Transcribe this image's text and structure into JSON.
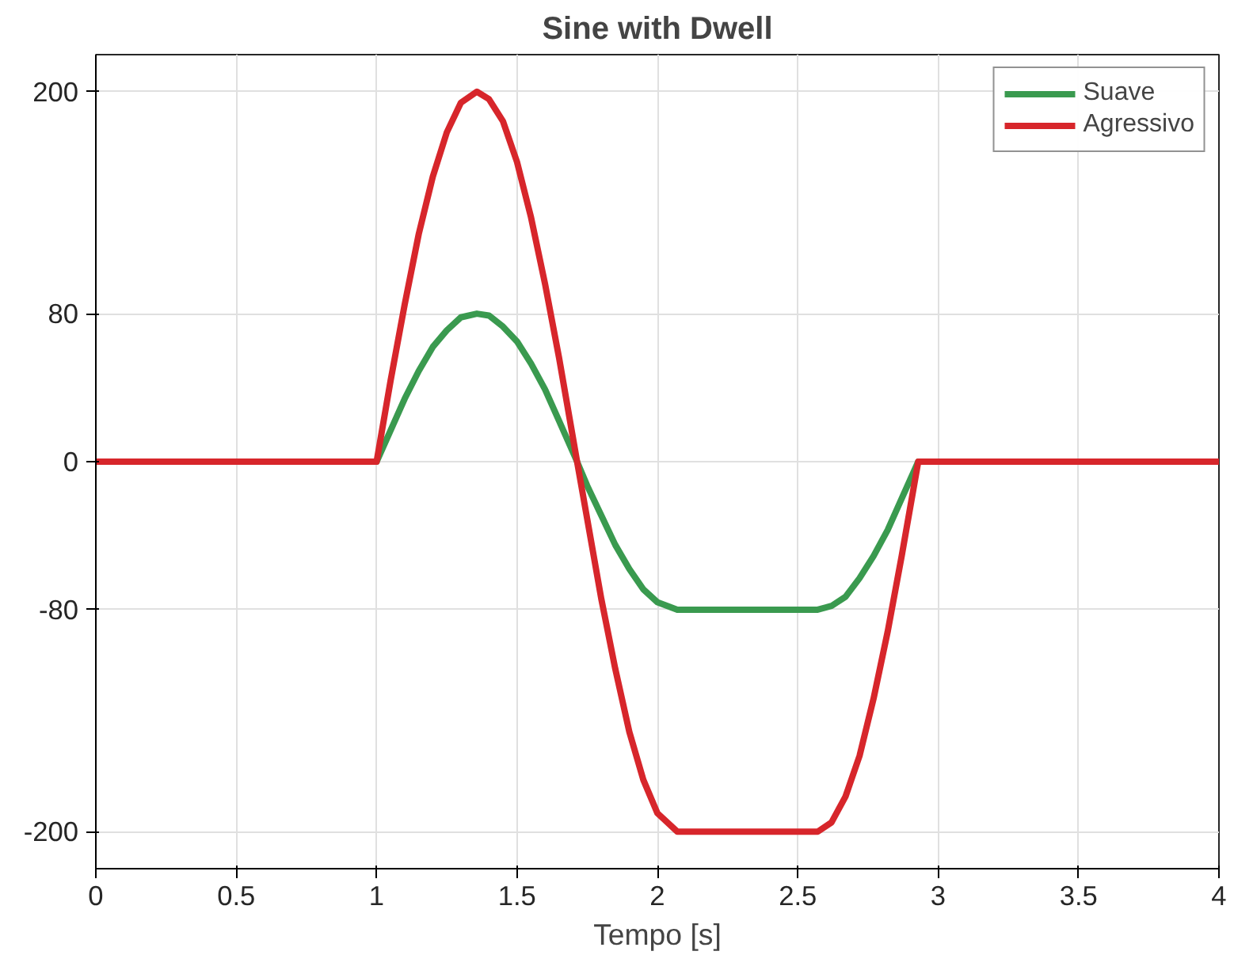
{
  "chart_data": {
    "type": "line",
    "title": "Sine with Dwell",
    "xlabel": "Tempo [s]",
    "x": [
      0,
      1,
      1.05,
      1.1,
      1.15,
      1.2,
      1.25,
      1.3,
      1.357,
      1.4,
      1.45,
      1.5,
      1.55,
      1.6,
      1.65,
      1.714,
      1.75,
      1.8,
      1.85,
      1.9,
      1.95,
      2.0,
      2.071,
      2.571,
      2.62,
      2.67,
      2.72,
      2.77,
      2.82,
      2.87,
      2.929,
      4
    ],
    "series": [
      {
        "name": "Suave",
        "color": "#3a9a4f",
        "values": [
          0,
          0,
          17,
          34,
          49,
          62,
          71,
          78,
          80,
          79,
          73,
          65,
          53,
          39,
          22,
          0,
          -13,
          -29,
          -45,
          -58,
          -69,
          -76,
          -80,
          -80,
          -78,
          -73,
          -63,
          -51,
          -37,
          -20,
          0,
          0
        ]
      },
      {
        "name": "Agressivo",
        "color": "#d7262b",
        "values": [
          0,
          0,
          44,
          85,
          123,
          154,
          178,
          194,
          200,
          196,
          184,
          162,
          132,
          96,
          56,
          0,
          -31,
          -74,
          -112,
          -146,
          -172,
          -190,
          -200,
          -200,
          -195,
          -181,
          -159,
          -128,
          -92,
          -51,
          0,
          0
        ]
      }
    ],
    "xlim": [
      0,
      4
    ],
    "ylim": [
      -220,
      220
    ],
    "xticks": [
      0,
      0.5,
      1,
      1.5,
      2,
      2.5,
      3,
      3.5,
      4
    ],
    "yticks": [
      -200,
      -80,
      0,
      80,
      200
    ],
    "grid": true,
    "legend": "top right",
    "line_style": "solid",
    "marker": "none"
  }
}
